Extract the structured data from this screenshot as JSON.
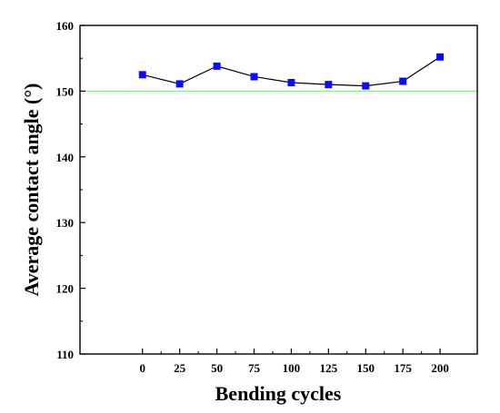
{
  "chart_data": {
    "type": "line",
    "title": "",
    "xlabel": "Bending cycles",
    "ylabel": "Average contact angle (°)",
    "x": [
      0,
      25,
      50,
      75,
      100,
      125,
      150,
      175,
      200
    ],
    "series": [
      {
        "values": [
          152.5,
          151.1,
          153.8,
          152.2,
          151.3,
          151.0,
          150.8,
          151.5,
          155.2
        ],
        "color": "#0a0aff",
        "marker": "square",
        "line_color": "#000000"
      }
    ],
    "reference_line": {
      "y": 150,
      "color": "#90ee90"
    },
    "xlim": [
      -42,
      225
    ],
    "ylim": [
      110,
      160
    ],
    "xticks": [
      0,
      25,
      50,
      75,
      100,
      125,
      150,
      175,
      200
    ],
    "yticks": [
      110,
      120,
      130,
      140,
      150,
      160
    ],
    "grid": false,
    "legend": "none"
  }
}
